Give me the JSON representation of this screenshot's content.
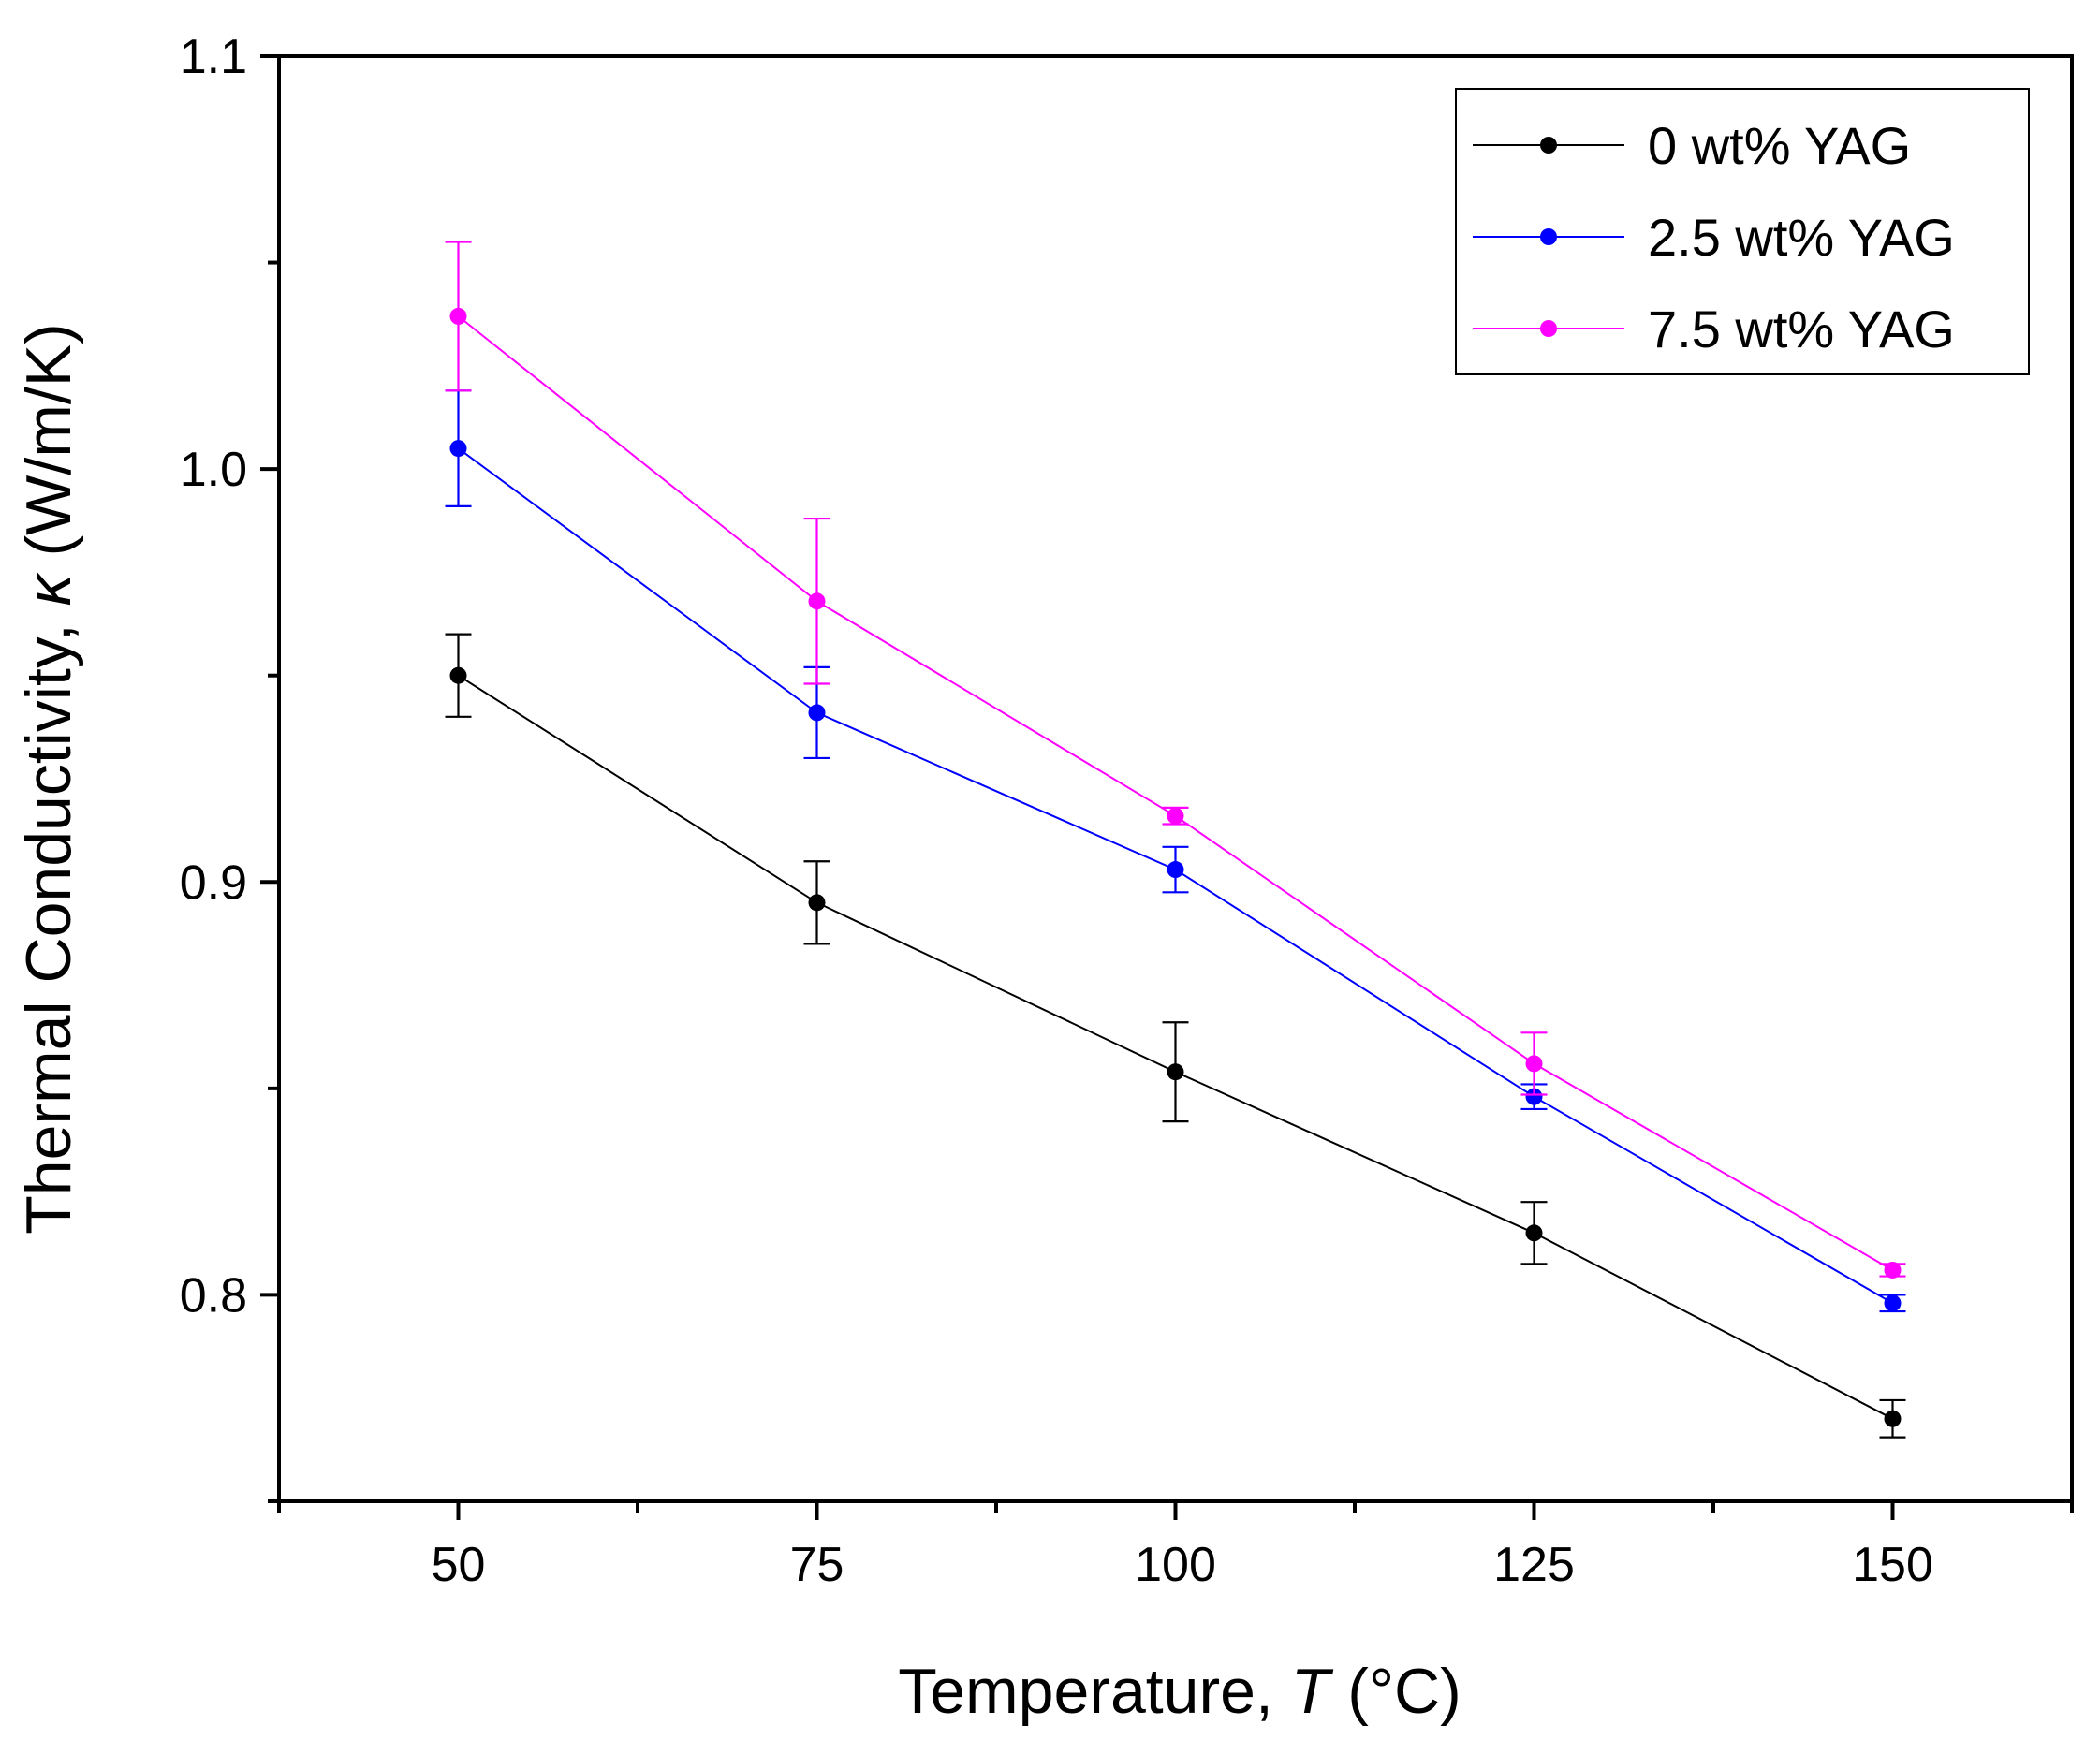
{
  "chart_data": {
    "type": "line",
    "title": "",
    "xlabel": {
      "prefix": "Temperature, ",
      "symbol": "T",
      "suffix": " (°C)"
    },
    "ylabel": {
      "prefix": "Thermal Conductivity, ",
      "symbol": "κ",
      "suffix": " (W/m/K)"
    },
    "xlim": [
      37.5,
      162.5
    ],
    "ylim": [
      0.75,
      1.1
    ],
    "x_ticks": [
      50,
      75,
      100,
      125,
      150
    ],
    "x_tick_labels": [
      "50",
      "75",
      "100",
      "125",
      "150"
    ],
    "x_minor_ticks": [
      37.5,
      62.5,
      87.5,
      112.5,
      137.5,
      162.5
    ],
    "y_ticks": [
      0.8,
      0.9,
      1.0,
      1.1
    ],
    "y_tick_labels": [
      "0.8",
      "0.9",
      "1.0",
      "1.1"
    ],
    "y_minor_ticks": [
      0.75,
      0.85,
      0.95,
      1.05
    ],
    "grid": false,
    "legend_position": "top-right",
    "x": [
      50,
      75,
      100,
      125,
      150
    ],
    "series": [
      {
        "name": "0 wt% YAG",
        "color": "#000000",
        "values": [
          0.95,
          0.895,
          0.854,
          0.815,
          0.77
        ],
        "errors": [
          0.01,
          0.01,
          0.012,
          0.0075,
          0.0045
        ]
      },
      {
        "name": "2.5 wt% YAG",
        "color": "#0000ff",
        "values": [
          1.005,
          0.941,
          0.903,
          0.848,
          0.798
        ],
        "errors": [
          0.014,
          0.011,
          0.0055,
          0.003,
          0.002
        ]
      },
      {
        "name": "7.5 wt% YAG",
        "color": "#ff00ff",
        "values": [
          1.037,
          0.968,
          0.916,
          0.856,
          0.806
        ],
        "errors": [
          0.018,
          0.02,
          0.002,
          0.0075,
          0.0015
        ]
      }
    ]
  }
}
